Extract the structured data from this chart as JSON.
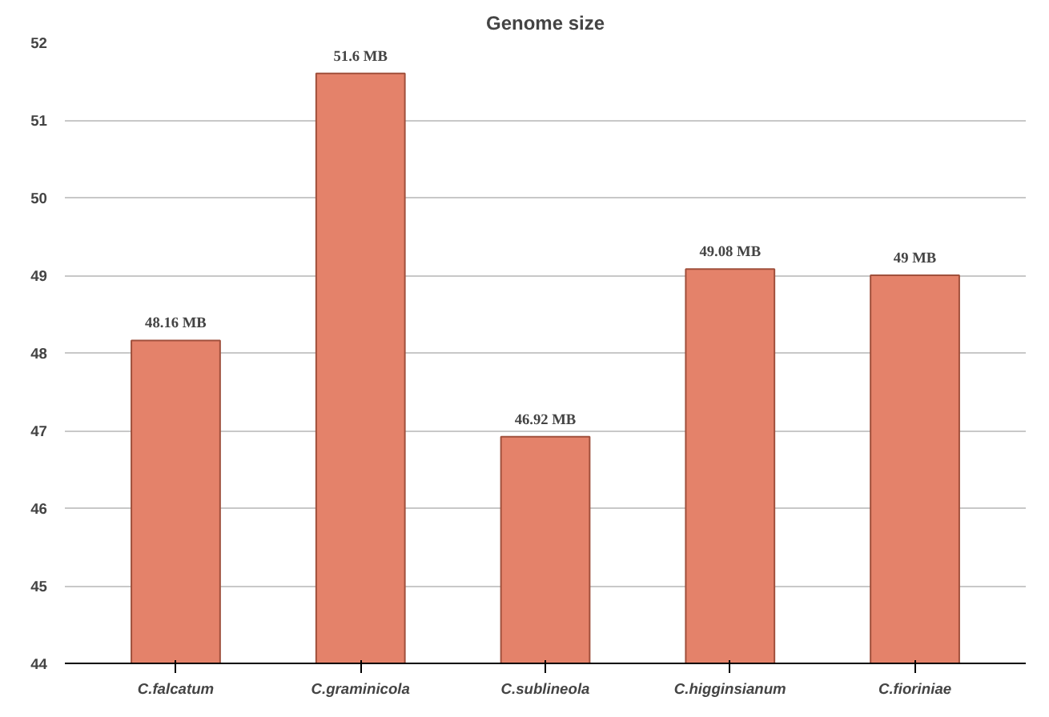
{
  "chart_data": {
    "type": "bar",
    "title": "Genome size",
    "categories": [
      "C.falcatum",
      "C.graminicola",
      "C.sublineola",
      "C.higginsianum",
      "C.fioriniae"
    ],
    "values": [
      48.16,
      51.6,
      46.92,
      49.08,
      49
    ],
    "value_labels": [
      "48.16 MB",
      "51.6 MB",
      "46.92 MB",
      "49.08 MB",
      "49 MB"
    ],
    "color": "#e4826a",
    "ylim": [
      44,
      52
    ],
    "yticks": [
      44,
      45,
      46,
      47,
      48,
      49,
      50,
      51,
      52
    ],
    "grid": "y"
  }
}
